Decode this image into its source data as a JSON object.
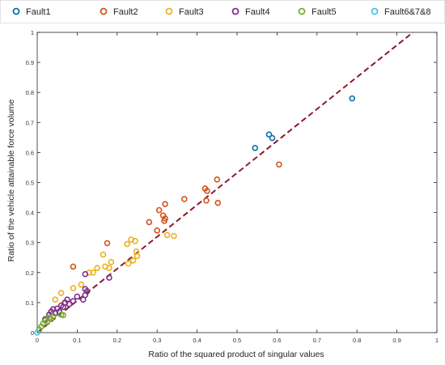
{
  "chart_data": {
    "type": "scatter",
    "title": "",
    "xlabel": "Ratio of the squared product of singular values",
    "ylabel": "Ratio of the vehicle attainable force volume",
    "xlim": [
      0,
      1
    ],
    "ylim": [
      0,
      1
    ],
    "xticks": [
      "0",
      "0.1",
      "0.2",
      "0.3",
      "0.4",
      "0.5",
      "0.6",
      "0.7",
      "0.8",
      "0.9",
      "1"
    ],
    "yticks": [
      "0",
      "0.1",
      "0.2",
      "0.3",
      "0.4",
      "0.5",
      "0.6",
      "0.7",
      "0.8",
      "0.9",
      "1"
    ],
    "grid": false,
    "legend_position": "top",
    "reference_line": {
      "style": "dashed",
      "color": "#8B1A2B",
      "x": [
        0,
        0.94
      ],
      "y": [
        0,
        1.0
      ]
    },
    "series": [
      {
        "name": "Fault1",
        "color": "#0A6FA8",
        "points": [
          [
            0.545,
            0.615
          ],
          [
            0.58,
            0.66
          ],
          [
            0.588,
            0.648
          ],
          [
            0.788,
            0.78
          ]
        ]
      },
      {
        "name": "Fault2",
        "color": "#D2531C",
        "points": [
          [
            0.09,
            0.22
          ],
          [
            0.175,
            0.298
          ],
          [
            0.28,
            0.368
          ],
          [
            0.3,
            0.34
          ],
          [
            0.305,
            0.408
          ],
          [
            0.315,
            0.39
          ],
          [
            0.318,
            0.372
          ],
          [
            0.32,
            0.38
          ],
          [
            0.32,
            0.428
          ],
          [
            0.368,
            0.445
          ],
          [
            0.42,
            0.48
          ],
          [
            0.423,
            0.44
          ],
          [
            0.425,
            0.472
          ],
          [
            0.45,
            0.51
          ],
          [
            0.452,
            0.432
          ],
          [
            0.605,
            0.56
          ]
        ]
      },
      {
        "name": "Fault3",
        "color": "#EDB120",
        "points": [
          [
            0.03,
            0.06
          ],
          [
            0.045,
            0.11
          ],
          [
            0.06,
            0.132
          ],
          [
            0.068,
            0.1
          ],
          [
            0.09,
            0.148
          ],
          [
            0.11,
            0.16
          ],
          [
            0.13,
            0.2
          ],
          [
            0.14,
            0.2
          ],
          [
            0.15,
            0.215
          ],
          [
            0.165,
            0.26
          ],
          [
            0.17,
            0.22
          ],
          [
            0.18,
            0.215
          ],
          [
            0.185,
            0.235
          ],
          [
            0.225,
            0.295
          ],
          [
            0.228,
            0.23
          ],
          [
            0.235,
            0.31
          ],
          [
            0.24,
            0.24
          ],
          [
            0.245,
            0.305
          ],
          [
            0.248,
            0.27
          ],
          [
            0.25,
            0.255
          ],
          [
            0.325,
            0.325
          ],
          [
            0.342,
            0.322
          ]
        ]
      },
      {
        "name": "Fault4",
        "color": "#7E2F8E",
        "points": [
          [
            0.02,
            0.045
          ],
          [
            0.03,
            0.06
          ],
          [
            0.035,
            0.07
          ],
          [
            0.04,
            0.078
          ],
          [
            0.045,
            0.065
          ],
          [
            0.05,
            0.08
          ],
          [
            0.055,
            0.07
          ],
          [
            0.06,
            0.09
          ],
          [
            0.065,
            0.085
          ],
          [
            0.07,
            0.1
          ],
          [
            0.075,
            0.11
          ],
          [
            0.08,
            0.095
          ],
          [
            0.09,
            0.105
          ],
          [
            0.1,
            0.12
          ],
          [
            0.115,
            0.11
          ],
          [
            0.12,
            0.125
          ],
          [
            0.12,
            0.145
          ],
          [
            0.12,
            0.195
          ],
          [
            0.125,
            0.138
          ],
          [
            0.18,
            0.183
          ]
        ]
      },
      {
        "name": "Fault5",
        "color": "#77AC30",
        "points": [
          [
            0.005,
            0.01
          ],
          [
            0.01,
            0.02
          ],
          [
            0.015,
            0.03
          ],
          [
            0.02,
            0.04
          ],
          [
            0.025,
            0.035
          ],
          [
            0.03,
            0.05
          ],
          [
            0.035,
            0.045
          ],
          [
            0.04,
            0.055
          ],
          [
            0.06,
            0.06
          ],
          [
            0.065,
            0.058
          ]
        ]
      },
      {
        "name": "Fault6&7&8",
        "color": "#4DBEEE",
        "points": [
          [
            0.0,
            0.0
          ]
        ]
      }
    ]
  }
}
